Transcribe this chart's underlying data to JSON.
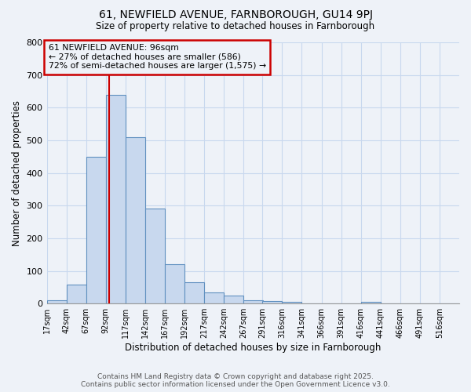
{
  "title1": "61, NEWFIELD AVENUE, FARNBOROUGH, GU14 9PJ",
  "title2": "Size of property relative to detached houses in Farnborough",
  "xlabel": "Distribution of detached houses by size in Farnborough",
  "ylabel": "Number of detached properties",
  "annotation_line1": "61 NEWFIELD AVENUE: 96sqm",
  "annotation_line2": "← 27% of detached houses are smaller (586)",
  "annotation_line3": "72% of semi-detached houses are larger (1,575) →",
  "property_size_sqm": 96,
  "bins": [
    17,
    42,
    67,
    92,
    117,
    142,
    167,
    192,
    217,
    242,
    267,
    291,
    316,
    341,
    366,
    391,
    416,
    441,
    466,
    491,
    516
  ],
  "counts": [
    10,
    58,
    450,
    640,
    510,
    290,
    120,
    65,
    35,
    25,
    10,
    8,
    5,
    0,
    0,
    0,
    5,
    0,
    0,
    0,
    0
  ],
  "bar_color": "#c8d8ee",
  "bar_edge_color": "#6090c0",
  "red_line_color": "#cc0000",
  "annotation_box_color": "#cc0000",
  "grid_color": "#c8d8ee",
  "background_color": "#eef2f8",
  "plot_bg_color": "#eef2f8",
  "footer_line1": "Contains HM Land Registry data © Crown copyright and database right 2025.",
  "footer_line2": "Contains public sector information licensed under the Open Government Licence v3.0.",
  "ylim": [
    0,
    800
  ],
  "yticks": [
    0,
    100,
    200,
    300,
    400,
    500,
    600,
    700,
    800
  ],
  "bin_width": 25
}
